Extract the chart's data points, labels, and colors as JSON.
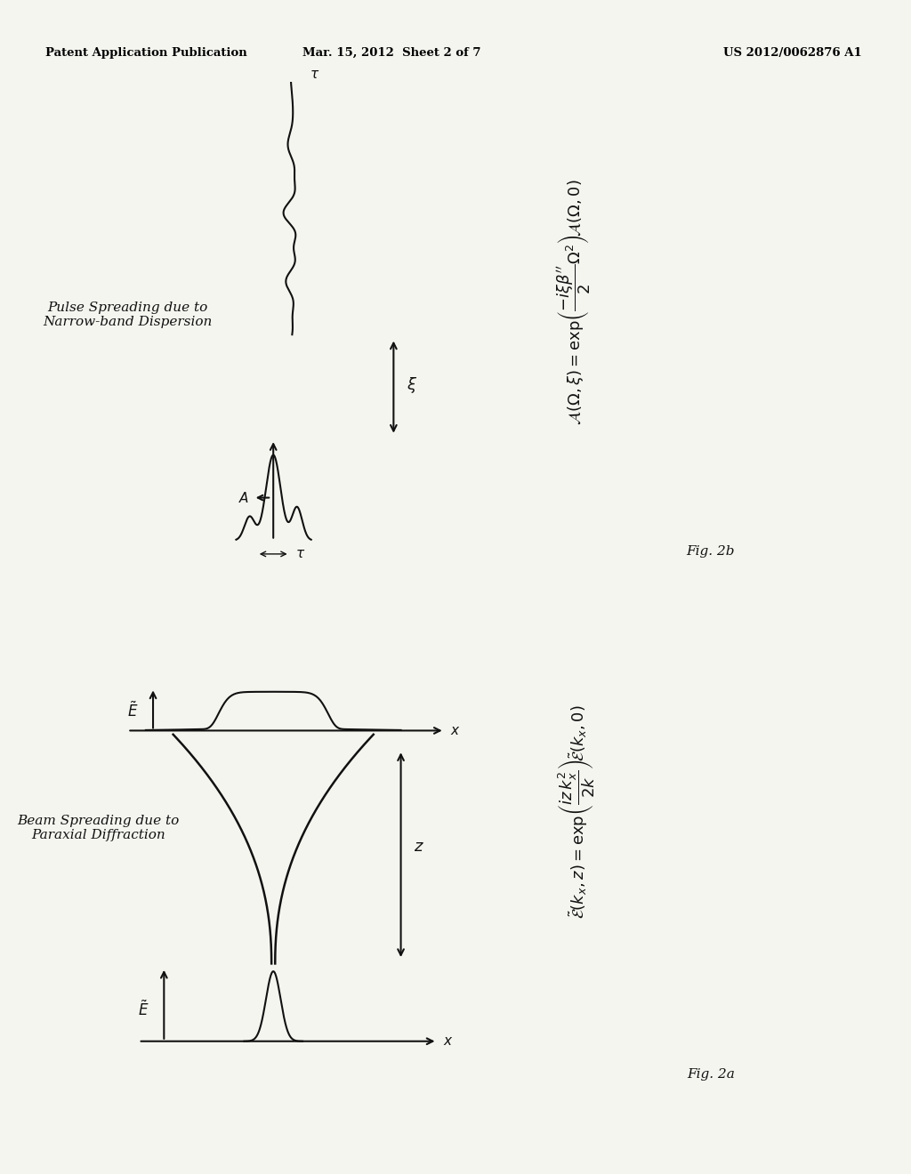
{
  "header_left": "Patent Application Publication",
  "header_mid": "Mar. 15, 2012  Sheet 2 of 7",
  "header_right": "US 2012/0062876 A1",
  "fig2a_title": "Beam Spreading due to\nParaxial Diffraction",
  "fig2a_label": "Fig. 2a",
  "fig2b_title": "Pulse Spreading due to\nNarrow-band Dispersion",
  "fig2b_label": "Fig. 2b",
  "bg_color": "#f5f5f0",
  "ink_color": "#1a1a1a"
}
